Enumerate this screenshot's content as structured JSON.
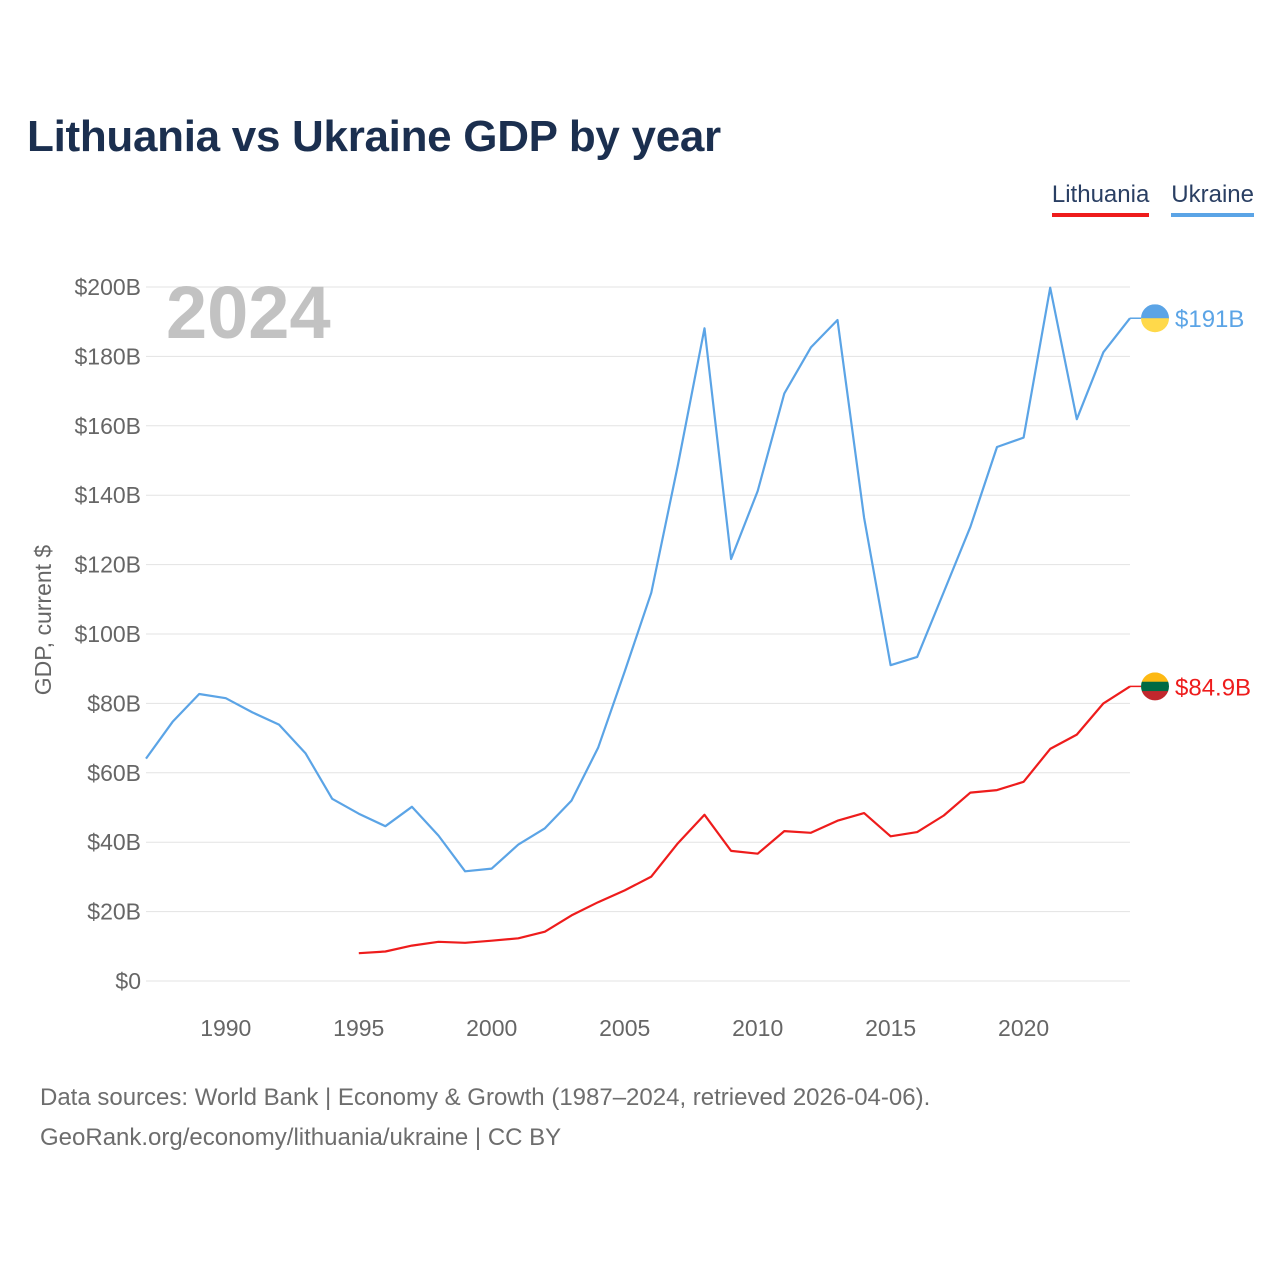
{
  "title": "Lithuania vs Ukraine GDP by year",
  "legend": [
    {
      "name": "Lithuania",
      "color": "#ee1c1c"
    },
    {
      "name": "Ukraine",
      "color": "#5ba4e6"
    }
  ],
  "sources": {
    "line1": "Data sources: World Bank | Economy & Growth (1987–2024, retrieved 2026-04-06).",
    "line2": "GeoRank.org/economy/lithuania/ukraine | CC BY"
  },
  "chart_data": {
    "type": "line",
    "title": "Lithuania vs Ukraine GDP by year",
    "ylabel": "GDP, current $",
    "xlabel": "",
    "year_watermark": "2024",
    "xlim": [
      1987,
      2024
    ],
    "ylim": [
      0,
      200
    ],
    "x_ticks": [
      1990,
      1995,
      2000,
      2005,
      2010,
      2015,
      2020
    ],
    "x_tick_labels": [
      "1990",
      "1995",
      "2000",
      "2005",
      "2010",
      "2015",
      "2020"
    ],
    "y_ticks": [
      0,
      20,
      40,
      60,
      80,
      100,
      120,
      140,
      160,
      180,
      200
    ],
    "y_tick_labels": [
      "$0",
      "$20B",
      "$40B",
      "$60B",
      "$80B",
      "$100B",
      "$120B",
      "$140B",
      "$160B",
      "$180B",
      "$200B"
    ],
    "grid": true,
    "legend_position": "top-right",
    "series": [
      {
        "name": "Lithuania",
        "color": "#ee1c1c",
        "end_label": "$84.9B",
        "flag_colors": [
          "#fdb913",
          "#006a44",
          "#c1272d"
        ],
        "x": [
          1995,
          1996,
          1997,
          1998,
          1999,
          2000,
          2001,
          2002,
          2003,
          2004,
          2005,
          2006,
          2007,
          2008,
          2009,
          2010,
          2011,
          2012,
          2013,
          2014,
          2015,
          2016,
          2017,
          2018,
          2019,
          2020,
          2021,
          2022,
          2023,
          2024
        ],
        "values": [
          8.0,
          8.5,
          10.2,
          11.3,
          11.0,
          11.6,
          12.3,
          14.2,
          18.9,
          22.7,
          26.1,
          30.1,
          39.7,
          47.9,
          37.5,
          36.7,
          43.2,
          42.7,
          46.2,
          48.4,
          41.7,
          42.9,
          47.7,
          54.3,
          55.0,
          57.4,
          66.9,
          71.0,
          80.0,
          84.9
        ]
      },
      {
        "name": "Ukraine",
        "color": "#5ba4e6",
        "end_label": "$191B",
        "flag_colors": [
          "#5ba4e6",
          "#ffd94a"
        ],
        "x": [
          1987,
          1988,
          1989,
          1990,
          1991,
          1992,
          1993,
          1994,
          1995,
          1996,
          1997,
          1998,
          1999,
          2000,
          2001,
          2002,
          2003,
          2004,
          2005,
          2006,
          2007,
          2008,
          2009,
          2010,
          2011,
          2012,
          2013,
          2014,
          2015,
          2016,
          2017,
          2018,
          2019,
          2020,
          2021,
          2022,
          2023,
          2024
        ],
        "values": [
          64.1,
          74.7,
          82.7,
          81.5,
          77.4,
          73.9,
          65.6,
          52.5,
          48.2,
          44.6,
          50.2,
          41.9,
          31.6,
          32.4,
          39.3,
          44.0,
          52.0,
          67.2,
          89.2,
          111.9,
          148.7,
          188.1,
          121.6,
          141.2,
          169.3,
          182.6,
          190.5,
          133.5,
          91.0,
          93.4,
          112.1,
          130.9,
          153.9,
          156.6,
          199.8,
          161.9,
          181.2,
          191.0
        ]
      }
    ]
  }
}
